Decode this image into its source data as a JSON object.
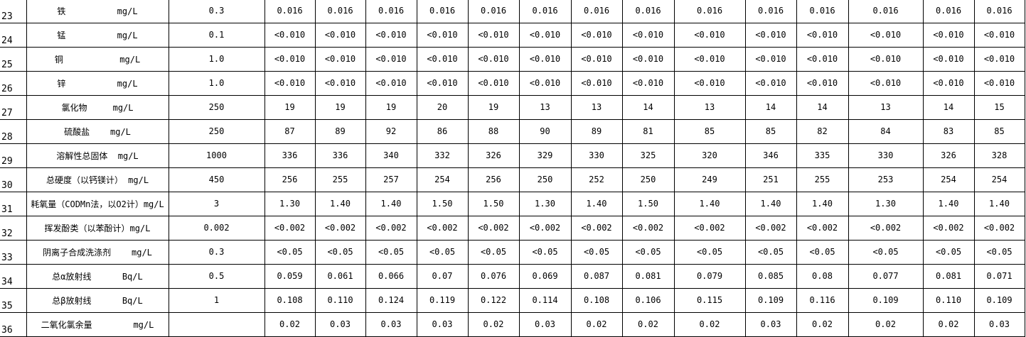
{
  "rows": [
    {
      "no": "23",
      "name": "铁          mg/L",
      "standard": "0.3",
      "values": [
        "0.016",
        "0.016",
        "0.016",
        "0.016",
        "0.016",
        "0.016",
        "0.016",
        "0.016",
        "0.016",
        "0.016",
        "0.016",
        "0.016",
        "0.016",
        "0.016"
      ]
    },
    {
      "no": "24",
      "name": "锰          mg/L",
      "standard": "0.1",
      "values": [
        "<0.010",
        "<0.010",
        "<0.010",
        "<0.010",
        "<0.010",
        "<0.010",
        "<0.010",
        "<0.010",
        "<0.010",
        "<0.010",
        "<0.010",
        "<0.010",
        "<0.010",
        "<0.010"
      ]
    },
    {
      "no": "25",
      "name": "铜           mg/L",
      "standard": "1.0",
      "values": [
        "<0.010",
        "<0.010",
        "<0.010",
        "<0.010",
        "<0.010",
        "<0.010",
        "<0.010",
        "<0.010",
        "<0.010",
        "<0.010",
        "<0.010",
        "<0.010",
        "<0.010",
        "<0.010"
      ]
    },
    {
      "no": "26",
      "name": "锌          mg/L",
      "standard": "1.0",
      "values": [
        "<0.010",
        "<0.010",
        "<0.010",
        "<0.010",
        "<0.010",
        "<0.010",
        "<0.010",
        "<0.010",
        "<0.010",
        "<0.010",
        "<0.010",
        "<0.010",
        "<0.010",
        "<0.010"
      ]
    },
    {
      "no": "27",
      "name": "氯化物     mg/L",
      "standard": "250",
      "values": [
        "19",
        "19",
        "19",
        "20",
        "19",
        "13",
        "13",
        "14",
        "13",
        "14",
        "14",
        "13",
        "14",
        "15"
      ]
    },
    {
      "no": "28",
      "name": "硫酸盐    mg/L",
      "standard": "250",
      "values": [
        "87",
        "89",
        "92",
        "86",
        "88",
        "90",
        "89",
        "81",
        "85",
        "85",
        "82",
        "84",
        "83",
        "85"
      ]
    },
    {
      "no": "29",
      "name": "溶解性总固体  mg/L",
      "standard": "1000",
      "values": [
        "336",
        "336",
        "340",
        "332",
        "326",
        "329",
        "330",
        "325",
        "320",
        "346",
        "335",
        "330",
        "326",
        "328"
      ]
    },
    {
      "no": "30",
      "name": "总硬度（以钙镁计） mg/L",
      "standard": "450",
      "values": [
        "256",
        "255",
        "257",
        "254",
        "256",
        "250",
        "252",
        "250",
        "249",
        "251",
        "255",
        "253",
        "254",
        "254"
      ]
    },
    {
      "no": "31",
      "name": "耗氧量（CODMn法，以O2计）mg/L",
      "standard": "3",
      "values": [
        "1.30",
        "1.40",
        "1.40",
        "1.50",
        "1.50",
        "1.30",
        "1.40",
        "1.50",
        "1.40",
        "1.40",
        "1.40",
        "1.30",
        "1.40",
        "1.40"
      ]
    },
    {
      "no": "32",
      "name": "挥发酚类（以苯酚计）mg/L",
      "standard": "0.002",
      "values": [
        "<0.002",
        "<0.002",
        "<0.002",
        "<0.002",
        "<0.002",
        "<0.002",
        "<0.002",
        "<0.002",
        "<0.002",
        "<0.002",
        "<0.002",
        "<0.002",
        "<0.002",
        "<0.002"
      ]
    },
    {
      "no": "33",
      "name": "阴离子合成洗涤剂    mg/L",
      "standard": "0.3",
      "values": [
        "<0.05",
        "<0.05",
        "<0.05",
        "<0.05",
        "<0.05",
        "<0.05",
        "<0.05",
        "<0.05",
        "<0.05",
        "<0.05",
        "<0.05",
        "<0.05",
        "<0.05",
        "<0.05"
      ]
    },
    {
      "no": "34",
      "name": "总α放射线      Bq/L",
      "standard": "0.5",
      "values": [
        "0.059",
        "0.061",
        "0.066",
        "0.07",
        "0.076",
        "0.069",
        "0.087",
        "0.081",
        "0.079",
        "0.085",
        "0.08",
        "0.077",
        "0.081",
        "0.071"
      ]
    },
    {
      "no": "35",
      "name": "总β放射线      Bq/L",
      "standard": "1",
      "values": [
        "0.108",
        "0.110",
        "0.124",
        "0.119",
        "0.122",
        "0.114",
        "0.108",
        "0.106",
        "0.115",
        "0.109",
        "0.116",
        "0.109",
        "0.110",
        "0.109"
      ]
    },
    {
      "no": "36",
      "name": "二氧化氯余量        mg/L",
      "standard": "",
      "values": [
        "0.02",
        "0.03",
        "0.03",
        "0.03",
        "0.02",
        "0.03",
        "0.02",
        "0.02",
        "0.02",
        "0.03",
        "0.02",
        "0.02",
        "0.02",
        "0.03"
      ]
    }
  ]
}
